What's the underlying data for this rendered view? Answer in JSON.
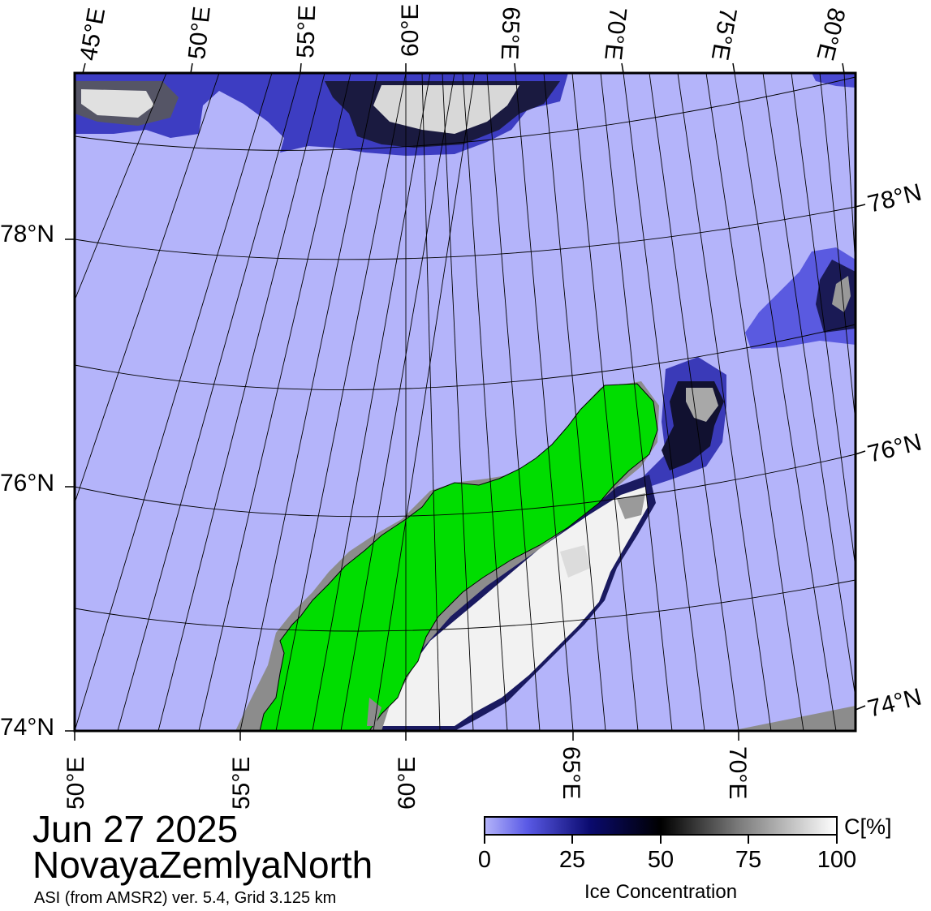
{
  "header": {
    "date": "Jun 27 2025",
    "region": "NovayaZemlyaNorth",
    "product": "ASI (from AMSR2) ver. 5.4,  Grid 3.125 km"
  },
  "map": {
    "top_lon_labels": [
      "45°E",
      "50°E",
      "55°E",
      "60°E",
      "65°E",
      "70°E",
      "75°E",
      "80°E"
    ],
    "bottom_lon_labels": [
      "50°E",
      "55°E",
      "60°E",
      "65°E",
      "70°E"
    ],
    "left_lat_labels": [
      "78°N",
      "76°N",
      "74°N"
    ],
    "right_lat_labels": [
      "78°N",
      "76°N",
      "74°N"
    ],
    "colors": {
      "open_water": "#b4b4fa",
      "land": "#00dd00",
      "land_border_ice": "#8c8c8c",
      "frame": "#000000"
    }
  },
  "colorbar": {
    "unit": "C[%]",
    "label": "Ice Concentration",
    "ticks": [
      "0",
      "25",
      "50",
      "75",
      "100"
    ],
    "stops": [
      "#b4b4fa",
      "#5a5ae6",
      "#0a0a6e",
      "#000000",
      "#7a7a7a",
      "#ffffff"
    ]
  }
}
